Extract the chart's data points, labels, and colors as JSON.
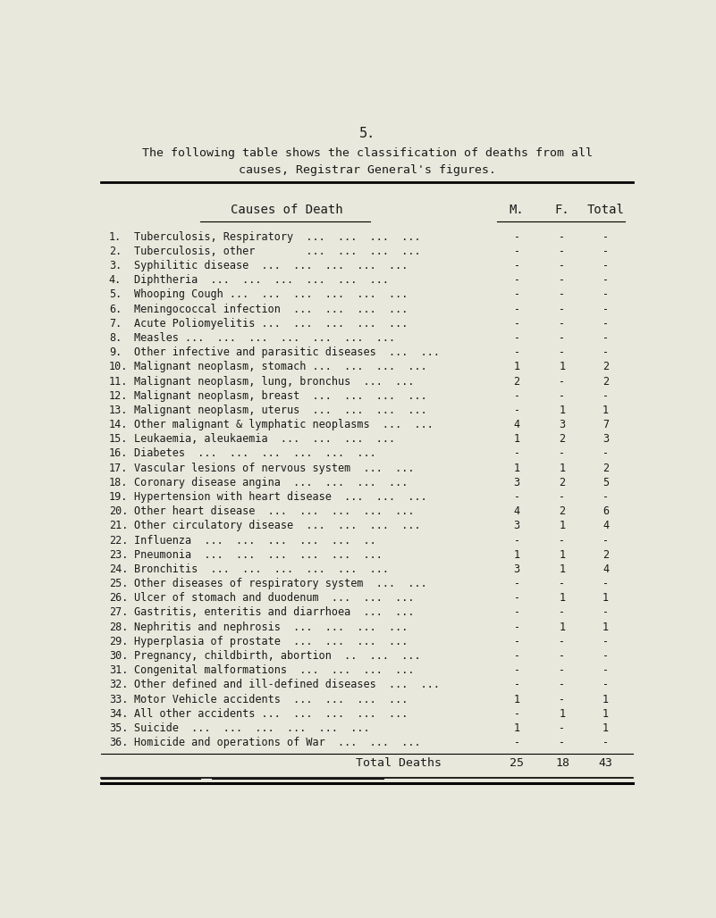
{
  "page_number": "5.",
  "intro_line1": "The following table shows the classification of deaths from all",
  "intro_line2": "causes, Registrar General's figures.",
  "col_header_cause": "Causes of Death",
  "col_header_m": "M.",
  "col_header_f": "F.",
  "col_header_total": "Total",
  "rows": [
    {
      "num": "1.",
      "cause": "Tuberculosis, Respiratory  ...  ...  ...  ...",
      "m": "-",
      "f": "-",
      "total": "-"
    },
    {
      "num": "2.",
      "cause": "Tuberculosis, other        ...  ...  ...  ...",
      "m": "-",
      "f": "-",
      "total": "-"
    },
    {
      "num": "3.",
      "cause": "Syphilitic disease  ...  ...  ...  ...  ...",
      "m": "-",
      "f": "-",
      "total": "-"
    },
    {
      "num": "4.",
      "cause": "Diphtheria  ...  ...  ...  ...  ...  ...",
      "m": "-",
      "f": "-",
      "total": "-"
    },
    {
      "num": "5.",
      "cause": "Whooping Cough ...  ...  ...  ...  ...  ...",
      "m": "-",
      "f": "-",
      "total": "-"
    },
    {
      "num": "6.",
      "cause": "Meningococcal infection  ...  ...  ...  ...",
      "m": "-",
      "f": "-",
      "total": "-"
    },
    {
      "num": "7.",
      "cause": "Acute Poliomyelitis ...  ...  ...  ...  ...",
      "m": "-",
      "f": "-",
      "total": "-"
    },
    {
      "num": "8.",
      "cause": "Measles ...  ...  ...  ...  ...  ...  ...",
      "m": "-",
      "f": "-",
      "total": "-"
    },
    {
      "num": "9.",
      "cause": "Other infective and parasitic diseases  ...  ...",
      "m": "-",
      "f": "-",
      "total": "-"
    },
    {
      "num": "10.",
      "cause": "Malignant neoplasm, stomach ...  ...  ...  ...",
      "m": "1",
      "f": "1",
      "total": "2"
    },
    {
      "num": "11.",
      "cause": "Malignant neoplasm, lung, bronchus  ...  ...",
      "m": "2",
      "f": "-",
      "total": "2"
    },
    {
      "num": "12.",
      "cause": "Malignant neoplasm, breast  ...  ...  ...  ...",
      "m": "-",
      "f": "-",
      "total": "-"
    },
    {
      "num": "13.",
      "cause": "Malignant neoplasm, uterus  ...  ...  ...  ...",
      "m": "-",
      "f": "1",
      "total": "1"
    },
    {
      "num": "14.",
      "cause": "Other malignant & lymphatic neoplasms  ...  ...",
      "m": "4",
      "f": "3",
      "total": "7"
    },
    {
      "num": "15.",
      "cause": "Leukaemia, aleukaemia  ...  ...  ...  ...",
      "m": "1",
      "f": "2",
      "total": "3"
    },
    {
      "num": "16.",
      "cause": "Diabetes  ...  ...  ...  ...  ...  ...",
      "m": "-",
      "f": "-",
      "total": "-"
    },
    {
      "num": "17.",
      "cause": "Vascular lesions of nervous system  ...  ...",
      "m": "1",
      "f": "1",
      "total": "2"
    },
    {
      "num": "18.",
      "cause": "Coronary disease angina  ...  ...  ...  ...",
      "m": "3",
      "f": "2",
      "total": "5"
    },
    {
      "num": "19.",
      "cause": "Hypertension with heart disease  ...  ...  ...",
      "m": "-",
      "f": "-",
      "total": "-"
    },
    {
      "num": "20.",
      "cause": "Other heart disease  ...  ...  ...  ...  ...",
      "m": "4",
      "f": "2",
      "total": "6"
    },
    {
      "num": "21.",
      "cause": "Other circulatory disease  ...  ...  ...  ...",
      "m": "3",
      "f": "1",
      "total": "4"
    },
    {
      "num": "22.",
      "cause": "Influenza  ...  ...  ...  ...  ...  ..",
      "m": "-",
      "f": "-",
      "total": "-"
    },
    {
      "num": "23.",
      "cause": "Pneumonia  ...  ...  ...  ...  ...  ...",
      "m": "1",
      "f": "1",
      "total": "2"
    },
    {
      "num": "24.",
      "cause": "Bronchitis  ...  ...  ...  ...  ...  ...",
      "m": "3",
      "f": "1",
      "total": "4"
    },
    {
      "num": "25.",
      "cause": "Other diseases of respiratory system  ...  ...",
      "m": "-",
      "f": "-",
      "total": "-"
    },
    {
      "num": "26.",
      "cause": "Ulcer of stomach and duodenum  ...  ...  ...",
      "m": "-",
      "f": "1",
      "total": "1"
    },
    {
      "num": "27.",
      "cause": "Gastritis, enteritis and diarrhoea  ...  ...",
      "m": "-",
      "f": "-",
      "total": "-"
    },
    {
      "num": "28.",
      "cause": "Nephritis and nephrosis  ...  ...  ...  ...",
      "m": "-",
      "f": "1",
      "total": "1"
    },
    {
      "num": "29.",
      "cause": "Hyperplasia of prostate  ...  ...  ...  ...",
      "m": "-",
      "f": "-",
      "total": "-"
    },
    {
      "num": "30.",
      "cause": "Pregnancy, childbirth, abortion  ..  ...  ...",
      "m": "-",
      "f": "-",
      "total": "-"
    },
    {
      "num": "31.",
      "cause": "Congenital malformations  ...  ...  ...  ...",
      "m": "-",
      "f": "-",
      "total": "-"
    },
    {
      "num": "32.",
      "cause": "Other defined and ill-defined diseases  ...  ...",
      "m": "-",
      "f": "-",
      "total": "-"
    },
    {
      "num": "33.",
      "cause": "Motor Vehicle accidents  ...  ...  ...  ...",
      "m": "1",
      "f": "-",
      "total": "1"
    },
    {
      "num": "34.",
      "cause": "All other accidents ...  ...  ...  ...  ...",
      "m": "-",
      "f": "1",
      "total": "1"
    },
    {
      "num": "35.",
      "cause": "Suicide  ...  ...  ...  ...  ...  ...",
      "m": "1",
      "f": "-",
      "total": "1"
    },
    {
      "num": "36.",
      "cause": "Homicide and operations of War  ...  ...  ...",
      "m": "-",
      "f": "-",
      "total": "-"
    }
  ],
  "footer_label": "Total Deaths",
  "footer_m": "25",
  "footer_f": "18",
  "footer_total": "43",
  "bg_color": "#e8e8dc",
  "text_color": "#1a1a1a"
}
